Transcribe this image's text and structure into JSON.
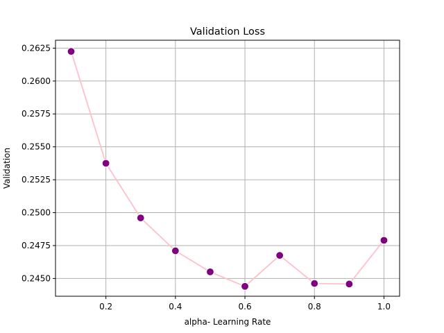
{
  "chart_data": {
    "type": "line",
    "title": "Validation Loss",
    "xlabel": "alpha- Learning Rate",
    "ylabel": "Validation",
    "x": [
      0.1,
      0.2,
      0.3,
      0.4,
      0.5,
      0.6,
      0.7,
      0.8,
      0.9,
      1.0
    ],
    "series": [
      {
        "name": "Validation",
        "values": [
          0.26225,
          0.25375,
          0.2496,
          0.2471,
          0.2455,
          0.2444,
          0.24675,
          0.24462,
          0.24458,
          0.2479
        ],
        "line_color": "#ffc0cb",
        "marker_color": "#800080"
      }
    ],
    "xlim": [
      0.055,
      1.045
    ],
    "ylim": [
      0.24365,
      0.2631
    ],
    "xticks": [
      0.2,
      0.4,
      0.6,
      0.8,
      1.0
    ],
    "xtick_labels": [
      "0.2",
      "0.4",
      "0.6",
      "0.8",
      "1.0"
    ],
    "yticks": [
      0.245,
      0.2475,
      0.25,
      0.2525,
      0.255,
      0.2575,
      0.26,
      0.2625
    ],
    "ytick_labels": [
      "0.2450",
      "0.2475",
      "0.2500",
      "0.2525",
      "0.2550",
      "0.2575",
      "0.2600",
      "0.2625"
    ],
    "grid": true
  }
}
